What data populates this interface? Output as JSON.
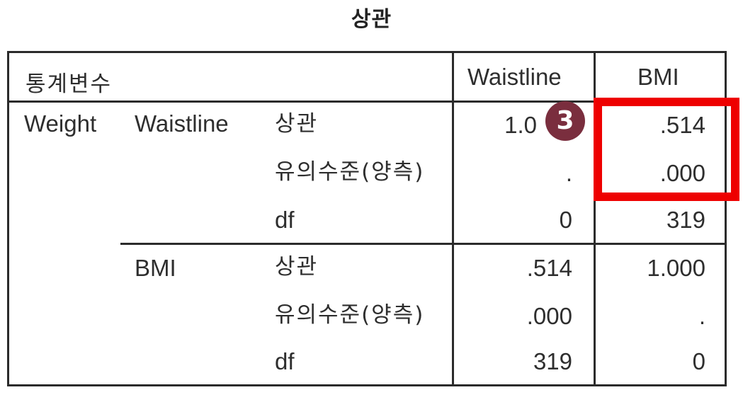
{
  "title": "상관",
  "header": {
    "stub_label": "통계변수",
    "col1": "Waistline",
    "col2": "BMI"
  },
  "group": "Weight",
  "rows": [
    {
      "variable": "Waistline",
      "stat": "상관",
      "col1": "1.0",
      "col2": ".514"
    },
    {
      "variable": "",
      "stat": "유의수준(양측)",
      "col1": ".",
      "col2": ".000"
    },
    {
      "variable": "",
      "stat": "df",
      "col1": "0",
      "col2": "319"
    },
    {
      "variable": "BMI",
      "stat": "상관",
      "col1": ".514",
      "col2": "1.000"
    },
    {
      "variable": "",
      "stat": "유의수준(양측)",
      "col1": ".000",
      "col2": "."
    },
    {
      "variable": "",
      "stat": "df",
      "col1": "319",
      "col2": "0"
    }
  ],
  "annotation": {
    "marker_label": "3",
    "highlight_color": "#ee0000",
    "marker_color": "#7a2e3e"
  }
}
